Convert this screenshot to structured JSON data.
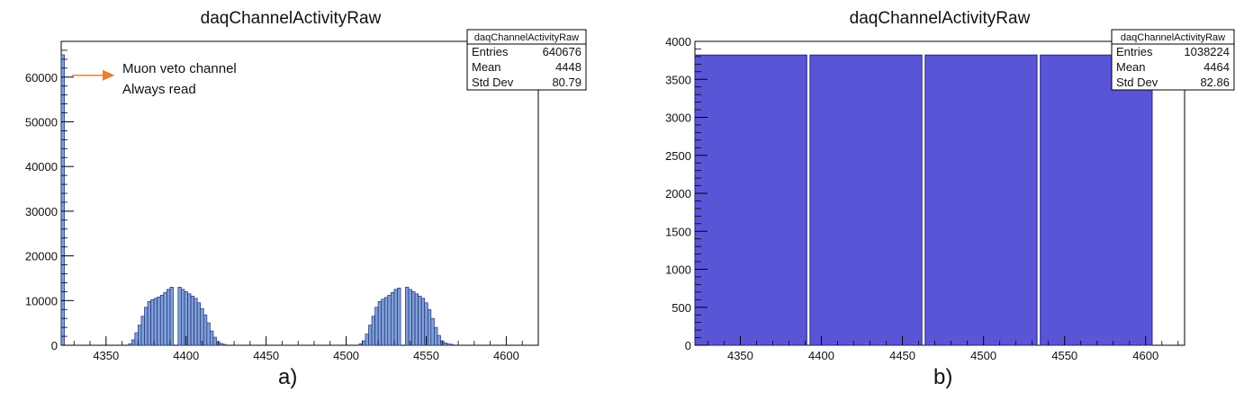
{
  "chart_data": [
    {
      "type": "histogram",
      "title": "daqChannelActivityRaw",
      "panel_label": "a)",
      "xlim": [
        4322,
        4620
      ],
      "ylim": [
        0,
        68000
      ],
      "x_ticks": [
        4350,
        4400,
        4450,
        4500,
        4550,
        4600
      ],
      "y_ticks": [
        0,
        10000,
        20000,
        30000,
        40000,
        50000,
        60000
      ],
      "fill_color": "#7f9fd6",
      "edge_color": "#1f2f7a",
      "stats": {
        "title": "daqChannelActivityRaw",
        "rows": [
          {
            "label": "Entries",
            "value": "640676"
          },
          {
            "label": "Mean",
            "value": "4448"
          },
          {
            "label": "Std Dev",
            "value": "80.79"
          }
        ]
      },
      "annotation": {
        "lines": [
          "Muon veto channel",
          "Always read"
        ],
        "arrow_color": "#ed7d31",
        "target_x": 4323,
        "target_y": 60000
      },
      "bins": [
        {
          "x": 4322,
          "w": 2,
          "y": 65000
        },
        {
          "x": 4364,
          "w": 2,
          "y": 300
        },
        {
          "x": 4366,
          "w": 2,
          "y": 1200
        },
        {
          "x": 4368,
          "w": 2,
          "y": 2800
        },
        {
          "x": 4370,
          "w": 2,
          "y": 4500
        },
        {
          "x": 4372,
          "w": 2,
          "y": 6500
        },
        {
          "x": 4374,
          "w": 2,
          "y": 8500
        },
        {
          "x": 4376,
          "w": 2,
          "y": 9800
        },
        {
          "x": 4378,
          "w": 2,
          "y": 10200
        },
        {
          "x": 4380,
          "w": 2,
          "y": 10500
        },
        {
          "x": 4382,
          "w": 2,
          "y": 10800
        },
        {
          "x": 4384,
          "w": 2,
          "y": 11200
        },
        {
          "x": 4386,
          "w": 2,
          "y": 11800
        },
        {
          "x": 4388,
          "w": 2,
          "y": 12500
        },
        {
          "x": 4390,
          "w": 2,
          "y": 13000
        },
        {
          "x": 4395,
          "w": 2,
          "y": 13000
        },
        {
          "x": 4397,
          "w": 2,
          "y": 12500
        },
        {
          "x": 4399,
          "w": 2,
          "y": 12000
        },
        {
          "x": 4401,
          "w": 2,
          "y": 11500
        },
        {
          "x": 4403,
          "w": 2,
          "y": 11000
        },
        {
          "x": 4405,
          "w": 2,
          "y": 10500
        },
        {
          "x": 4407,
          "w": 2,
          "y": 9500
        },
        {
          "x": 4409,
          "w": 2,
          "y": 8200
        },
        {
          "x": 4411,
          "w": 2,
          "y": 6800
        },
        {
          "x": 4413,
          "w": 2,
          "y": 5000
        },
        {
          "x": 4415,
          "w": 2,
          "y": 3200
        },
        {
          "x": 4417,
          "w": 2,
          "y": 1800
        },
        {
          "x": 4419,
          "w": 2,
          "y": 800
        },
        {
          "x": 4421,
          "w": 2,
          "y": 400
        },
        {
          "x": 4423,
          "w": 2,
          "y": 200
        },
        {
          "x": 4508,
          "w": 2,
          "y": 300
        },
        {
          "x": 4510,
          "w": 2,
          "y": 1000
        },
        {
          "x": 4512,
          "w": 2,
          "y": 2500
        },
        {
          "x": 4514,
          "w": 2,
          "y": 4500
        },
        {
          "x": 4516,
          "w": 2,
          "y": 6500
        },
        {
          "x": 4518,
          "w": 2,
          "y": 8500
        },
        {
          "x": 4520,
          "w": 2,
          "y": 9800
        },
        {
          "x": 4522,
          "w": 2,
          "y": 10300
        },
        {
          "x": 4524,
          "w": 2,
          "y": 10700
        },
        {
          "x": 4526,
          "w": 2,
          "y": 11200
        },
        {
          "x": 4528,
          "w": 2,
          "y": 11800
        },
        {
          "x": 4530,
          "w": 2,
          "y": 12500
        },
        {
          "x": 4532,
          "w": 2,
          "y": 12800
        },
        {
          "x": 4537,
          "w": 2,
          "y": 13000
        },
        {
          "x": 4539,
          "w": 2,
          "y": 12500
        },
        {
          "x": 4541,
          "w": 2,
          "y": 12000
        },
        {
          "x": 4543,
          "w": 2,
          "y": 11500
        },
        {
          "x": 4545,
          "w": 2,
          "y": 11000
        },
        {
          "x": 4547,
          "w": 2,
          "y": 10500
        },
        {
          "x": 4549,
          "w": 2,
          "y": 9500
        },
        {
          "x": 4551,
          "w": 2,
          "y": 8000
        },
        {
          "x": 4553,
          "w": 2,
          "y": 6000
        },
        {
          "x": 4555,
          "w": 2,
          "y": 4000
        },
        {
          "x": 4557,
          "w": 2,
          "y": 2200
        },
        {
          "x": 4559,
          "w": 2,
          "y": 1000
        },
        {
          "x": 4561,
          "w": 2,
          "y": 500
        },
        {
          "x": 4563,
          "w": 2,
          "y": 300
        },
        {
          "x": 4565,
          "w": 2,
          "y": 200
        }
      ]
    },
    {
      "type": "histogram",
      "title": "daqChannelActivityRaw",
      "panel_label": "b)",
      "xlim": [
        4322,
        4624
      ],
      "ylim": [
        0,
        4000
      ],
      "x_ticks": [
        4350,
        4400,
        4450,
        4500,
        4550,
        4600
      ],
      "y_ticks": [
        0,
        500,
        1000,
        1500,
        2000,
        2500,
        3000,
        3500,
        4000
      ],
      "fill_color": "#5a55d6",
      "edge_color": "#26247a",
      "stats": {
        "title": "daqChannelActivityRaw",
        "rows": [
          {
            "label": "Entries",
            "value": "1038224"
          },
          {
            "label": "Mean",
            "value": "4464"
          },
          {
            "label": "Std Dev",
            "value": "82.86"
          }
        ]
      },
      "bins": [
        {
          "x": 4322,
          "w": 69,
          "y": 3820
        },
        {
          "x": 4393,
          "w": 69,
          "y": 3820
        },
        {
          "x": 4464,
          "w": 69,
          "y": 3820
        },
        {
          "x": 4535,
          "w": 69,
          "y": 3820
        }
      ]
    }
  ]
}
